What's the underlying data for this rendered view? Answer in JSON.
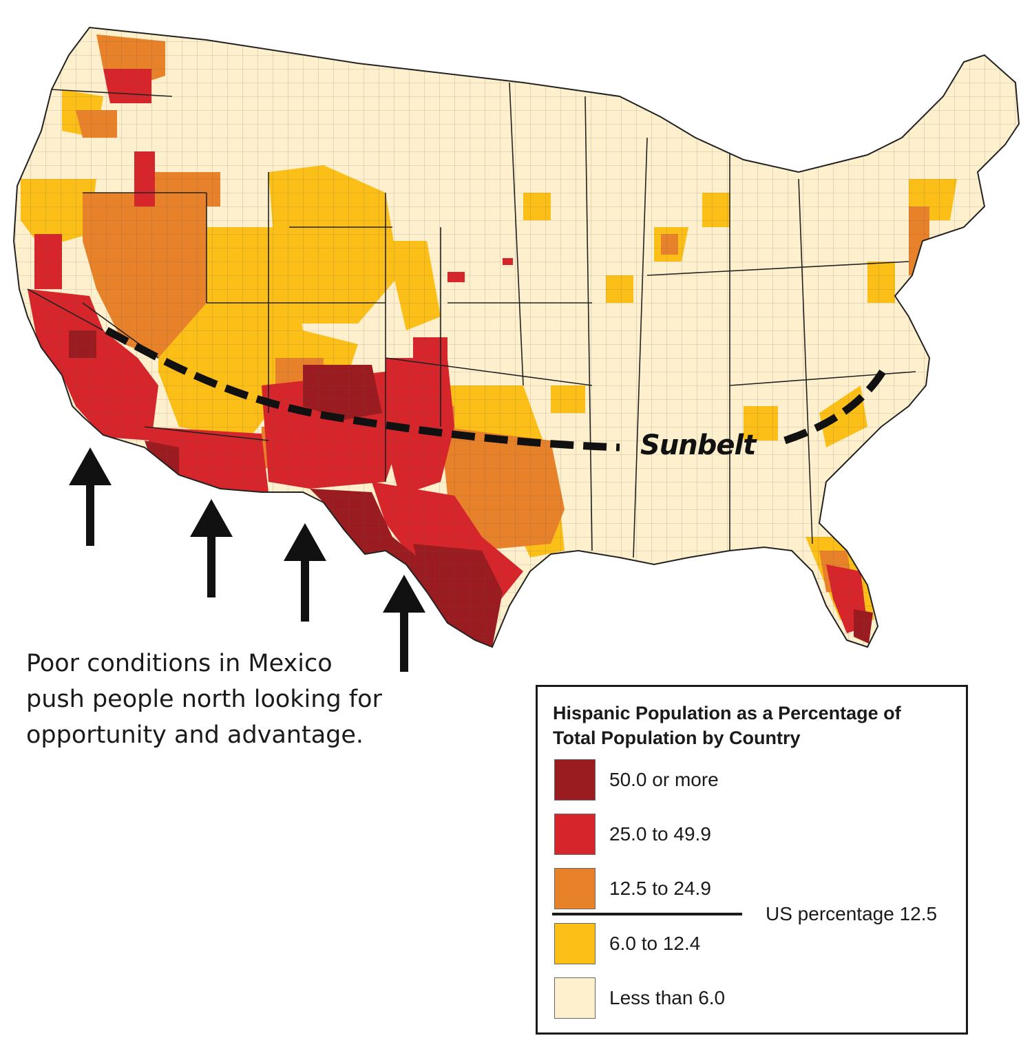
{
  "map": {
    "region": "Contiguous United States",
    "colors": {
      "class_50_plus": "#9b1c20",
      "class_25_49": "#d7262b",
      "class_12_24": "#e8822a",
      "class_6_12": "#fbbf18",
      "class_lt_6": "#fef0cd",
      "county_border": "#444444",
      "arrow": "#111111"
    },
    "sunbelt_label": "Sunbelt",
    "caption_lines": [
      "Poor conditions in Mexico",
      "push people north looking for",
      "opportunity and advantage."
    ]
  },
  "legend": {
    "title_lines": [
      "Hispanic Population as a Percentage of",
      "Total Population by Country"
    ],
    "classes": [
      {
        "label": "50.0 or more",
        "color": "#9b1c20"
      },
      {
        "label": "25.0 to 49.9",
        "color": "#d7262b"
      },
      {
        "label": "12.5 to 24.9",
        "color": "#e8822a"
      },
      {
        "label": "6.0 to 12.4",
        "color": "#fbbf18"
      },
      {
        "label": "Less than 6.0",
        "color": "#fef0cd"
      }
    ],
    "us_percentage_label": "US percentage 12.5"
  }
}
